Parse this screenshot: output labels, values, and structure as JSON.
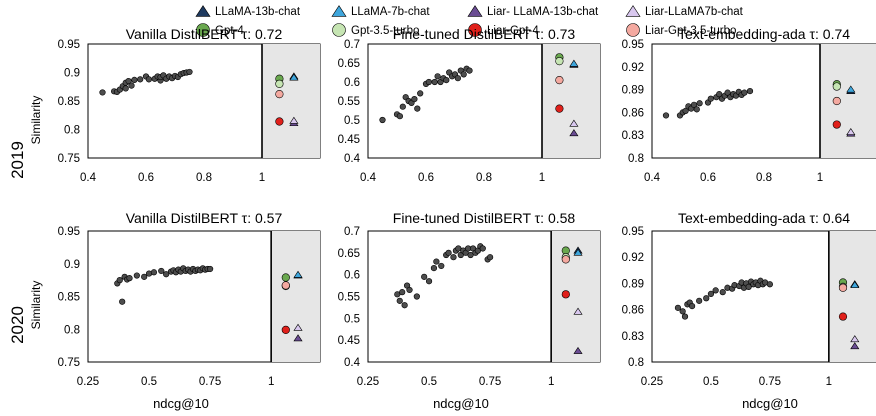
{
  "legend": [
    {
      "label": "LLaMA-13b-chat",
      "marker": "triangle",
      "color": "#1f3a5f"
    },
    {
      "label": "LLaMA-7b-chat",
      "marker": "triangle",
      "color": "#3fa6dc"
    },
    {
      "label": "Liar- LLaMA-13b-chat",
      "marker": "triangle",
      "color": "#6a4c93"
    },
    {
      "label": "Liar-LLaMA7b-chat",
      "marker": "triangle",
      "color": "#d9c8ef"
    },
    {
      "label": "Gpt-4",
      "marker": "circle",
      "color": "#6aa84f"
    },
    {
      "label": "Gpt-3.5-turbo",
      "marker": "circle",
      "color": "#c6e5b3"
    },
    {
      "label": "Liar-Gpt-4",
      "marker": "circle",
      "color": "#e0201b"
    },
    {
      "label": "Liar-Gpt-3.5-turbo",
      "marker": "circle",
      "color": "#f4a9a0"
    }
  ],
  "row_labels": [
    "2019",
    "2020"
  ],
  "ylabel": "Similarity",
  "xlabel": "ndcg@10",
  "colors": {
    "scatter": "#4d4d4d",
    "shade": "#e6e6e6",
    "grey_tick": "#808080"
  },
  "chart_data": [
    {
      "type": "scatter",
      "title": "Vanilla DistilBERT τ: 0.72",
      "xlim": [
        0.4,
        1.2
      ],
      "ylim": [
        0.75,
        0.95
      ],
      "xticks": [
        "0.4",
        "0.6",
        "0.8",
        "1"
      ],
      "xtick_values": [
        0.4,
        0.6,
        0.8,
        1.0
      ],
      "xticks_grey": true,
      "yticks": [
        "0.75",
        "0.8",
        "0.85",
        "0.9",
        "0.95"
      ],
      "ytick_values": [
        0.75,
        0.8,
        0.85,
        0.9,
        0.95
      ],
      "shade_from": 1.0,
      "x": [
        0.45,
        0.49,
        0.5,
        0.51,
        0.52,
        0.53,
        0.53,
        0.54,
        0.55,
        0.56,
        0.58,
        0.6,
        0.61,
        0.63,
        0.64,
        0.65,
        0.65,
        0.66,
        0.67,
        0.68,
        0.69,
        0.7,
        0.71,
        0.72,
        0.73,
        0.74,
        0.75
      ],
      "y": [
        0.865,
        0.867,
        0.866,
        0.87,
        0.876,
        0.882,
        0.872,
        0.885,
        0.877,
        0.887,
        0.888,
        0.893,
        0.888,
        0.889,
        0.893,
        0.886,
        0.892,
        0.895,
        0.889,
        0.893,
        0.89,
        0.894,
        0.892,
        0.897,
        0.899,
        0.9,
        0.901
      ],
      "llm_points": [
        {
          "label": "Gpt-4",
          "x": 1.06,
          "y": 0.889
        },
        {
          "label": "Gpt-3.5-turbo",
          "x": 1.06,
          "y": 0.88
        },
        {
          "label": "Liar-Gpt-3.5-turbo",
          "x": 1.06,
          "y": 0.862
        },
        {
          "label": "Liar-Gpt-4",
          "x": 1.06,
          "y": 0.814
        },
        {
          "label": "LLaMA-13b-chat",
          "x": 1.11,
          "y": 0.893
        },
        {
          "label": "LLaMA-7b-chat",
          "x": 1.11,
          "y": 0.891
        },
        {
          "label": "Liar- LLaMA-13b-chat",
          "x": 1.11,
          "y": 0.811
        },
        {
          "label": "Liar-LLaMA7b-chat",
          "x": 1.11,
          "y": 0.815
        }
      ]
    },
    {
      "type": "scatter",
      "title": "Fine-tuned DistilBERT τ: 0.73",
      "xlim": [
        0.4,
        1.2
      ],
      "ylim": [
        0.4,
        0.7
      ],
      "xticks": [
        "0.4",
        "0.6",
        "0.8",
        "1"
      ],
      "xtick_values": [
        0.4,
        0.6,
        0.8,
        1.0
      ],
      "xticks_grey": false,
      "yticks": [
        "0.4",
        "0.45",
        "0.5",
        "0.55",
        "0.6",
        "0.65",
        "0.7"
      ],
      "ytick_values": [
        0.4,
        0.45,
        0.5,
        0.55,
        0.6,
        0.65,
        0.7
      ],
      "shade_from": 1.0,
      "x": [
        0.45,
        0.5,
        0.51,
        0.52,
        0.53,
        0.54,
        0.55,
        0.56,
        0.57,
        0.58,
        0.6,
        0.61,
        0.63,
        0.64,
        0.65,
        0.66,
        0.67,
        0.68,
        0.69,
        0.7,
        0.71,
        0.72,
        0.73,
        0.74,
        0.75
      ],
      "y": [
        0.5,
        0.515,
        0.51,
        0.535,
        0.56,
        0.55,
        0.545,
        0.555,
        0.53,
        0.57,
        0.595,
        0.6,
        0.6,
        0.615,
        0.6,
        0.61,
        0.605,
        0.625,
        0.615,
        0.62,
        0.61,
        0.63,
        0.62,
        0.635,
        0.63
      ],
      "llm_points": [
        {
          "label": "Gpt-4",
          "x": 1.06,
          "y": 0.665
        },
        {
          "label": "Gpt-3.5-turbo",
          "x": 1.06,
          "y": 0.655
        },
        {
          "label": "Liar-Gpt-3.5-turbo",
          "x": 1.06,
          "y": 0.605
        },
        {
          "label": "Liar-Gpt-4",
          "x": 1.06,
          "y": 0.53
        },
        {
          "label": "LLaMA-13b-chat",
          "x": 1.11,
          "y": 0.645
        },
        {
          "label": "LLaMA-7b-chat",
          "x": 1.11,
          "y": 0.648
        },
        {
          "label": "Liar- LLaMA-13b-chat",
          "x": 1.11,
          "y": 0.465
        },
        {
          "label": "Liar-LLaMA7b-chat",
          "x": 1.11,
          "y": 0.49
        }
      ]
    },
    {
      "type": "scatter",
      "title": "Text-embedding-ada τ: 0.74",
      "xlim": [
        0.4,
        1.2
      ],
      "ylim": [
        0.8,
        0.95
      ],
      "xticks": [
        "0.4",
        "0.6",
        "0.8",
        "1"
      ],
      "xtick_values": [
        0.4,
        0.6,
        0.8,
        1.0
      ],
      "xticks_grey": false,
      "yticks": [
        "0.8",
        "0.83",
        "0.86",
        "0.89",
        "0.92",
        "0.95"
      ],
      "ytick_values": [
        0.8,
        0.83,
        0.86,
        0.89,
        0.92,
        0.95
      ],
      "shade_from": 1.0,
      "x": [
        0.45,
        0.5,
        0.51,
        0.52,
        0.53,
        0.54,
        0.55,
        0.56,
        0.57,
        0.6,
        0.61,
        0.63,
        0.64,
        0.65,
        0.66,
        0.67,
        0.68,
        0.69,
        0.7,
        0.71,
        0.72,
        0.73,
        0.75
      ],
      "y": [
        0.856,
        0.856,
        0.86,
        0.862,
        0.868,
        0.865,
        0.87,
        0.864,
        0.872,
        0.873,
        0.878,
        0.88,
        0.884,
        0.878,
        0.882,
        0.886,
        0.88,
        0.884,
        0.882,
        0.887,
        0.883,
        0.886,
        0.888
      ],
      "llm_points": [
        {
          "label": "Gpt-4",
          "x": 1.06,
          "y": 0.897
        },
        {
          "label": "Gpt-3.5-turbo",
          "x": 1.06,
          "y": 0.894
        },
        {
          "label": "Liar-Gpt-3.5-turbo",
          "x": 1.06,
          "y": 0.875
        },
        {
          "label": "Liar-Gpt-4",
          "x": 1.06,
          "y": 0.844
        },
        {
          "label": "LLaMA-13b-chat",
          "x": 1.11,
          "y": 0.888
        },
        {
          "label": "LLaMA-7b-chat",
          "x": 1.11,
          "y": 0.89
        },
        {
          "label": "Liar- LLaMA-13b-chat",
          "x": 1.11,
          "y": 0.832
        },
        {
          "label": "Liar-LLaMA7b-chat",
          "x": 1.11,
          "y": 0.834
        }
      ]
    },
    {
      "type": "scatter",
      "title": "Vanilla DistilBERT τ: 0.57",
      "xlim": [
        0.25,
        1.2
      ],
      "ylim": [
        0.75,
        0.95
      ],
      "xticks": [
        "0.25",
        "0.5",
        "0.75",
        "1"
      ],
      "xtick_values": [
        0.25,
        0.5,
        0.75,
        1.0
      ],
      "xticks_grey": false,
      "yticks": [
        "0.75",
        "0.8",
        "0.85",
        "0.9",
        "0.95"
      ],
      "ytick_values": [
        0.75,
        0.8,
        0.85,
        0.9,
        0.95
      ],
      "shade_from": 1.0,
      "x": [
        0.37,
        0.38,
        0.39,
        0.4,
        0.41,
        0.42,
        0.45,
        0.48,
        0.5,
        0.52,
        0.55,
        0.57,
        0.59,
        0.6,
        0.61,
        0.62,
        0.63,
        0.64,
        0.65,
        0.66,
        0.67,
        0.68,
        0.69,
        0.7,
        0.71,
        0.72,
        0.73,
        0.74,
        0.75
      ],
      "y": [
        0.87,
        0.875,
        0.842,
        0.88,
        0.876,
        0.878,
        0.882,
        0.88,
        0.885,
        0.887,
        0.889,
        0.884,
        0.888,
        0.89,
        0.887,
        0.891,
        0.888,
        0.893,
        0.889,
        0.891,
        0.888,
        0.892,
        0.889,
        0.891,
        0.89,
        0.893,
        0.891,
        0.892,
        0.892
      ],
      "llm_points": [
        {
          "label": "Gpt-4",
          "x": 1.06,
          "y": 0.879
        },
        {
          "label": "Gpt-3.5-turbo",
          "x": 1.06,
          "y": 0.866
        },
        {
          "label": "Liar-Gpt-3.5-turbo",
          "x": 1.06,
          "y": 0.867
        },
        {
          "label": "Liar-Gpt-4",
          "x": 1.06,
          "y": 0.799
        },
        {
          "label": "LLaMA-13b-chat",
          "x": 1.11,
          "y": 0.882
        },
        {
          "label": "LLaMA-7b-chat",
          "x": 1.11,
          "y": 0.883
        },
        {
          "label": "Liar- LLaMA-13b-chat",
          "x": 1.11,
          "y": 0.786
        },
        {
          "label": "Liar-LLaMA7b-chat",
          "x": 1.11,
          "y": 0.802
        }
      ]
    },
    {
      "type": "scatter",
      "title": "Fine-tuned DistilBERT τ: 0.58",
      "xlim": [
        0.25,
        1.2
      ],
      "ylim": [
        0.4,
        0.7
      ],
      "xticks": [
        "0.25",
        "0.5",
        "0.75",
        "1"
      ],
      "xtick_values": [
        0.25,
        0.5,
        0.75,
        1.0
      ],
      "xticks_grey": false,
      "yticks": [
        "0.4",
        "0.45",
        "0.5",
        "0.55",
        "0.6",
        "0.65",
        "0.7"
      ],
      "ytick_values": [
        0.4,
        0.45,
        0.5,
        0.55,
        0.6,
        0.65,
        0.7
      ],
      "shade_from": 1.0,
      "x": [
        0.37,
        0.38,
        0.39,
        0.4,
        0.41,
        0.42,
        0.45,
        0.48,
        0.5,
        0.52,
        0.53,
        0.55,
        0.57,
        0.58,
        0.6,
        0.61,
        0.62,
        0.63,
        0.64,
        0.65,
        0.66,
        0.67,
        0.68,
        0.69,
        0.7,
        0.71,
        0.72,
        0.74,
        0.75
      ],
      "y": [
        0.555,
        0.54,
        0.56,
        0.53,
        0.575,
        0.565,
        0.55,
        0.595,
        0.585,
        0.615,
        0.63,
        0.62,
        0.645,
        0.65,
        0.64,
        0.655,
        0.66,
        0.645,
        0.655,
        0.65,
        0.66,
        0.645,
        0.66,
        0.65,
        0.655,
        0.665,
        0.66,
        0.635,
        0.64
      ],
      "llm_points": [
        {
          "label": "Gpt-4",
          "x": 1.06,
          "y": 0.655
        },
        {
          "label": "Gpt-3.5-turbo",
          "x": 1.06,
          "y": 0.64
        },
        {
          "label": "Liar-Gpt-3.5-turbo",
          "x": 1.06,
          "y": 0.635
        },
        {
          "label": "Liar-Gpt-4",
          "x": 1.06,
          "y": 0.555
        },
        {
          "label": "LLaMA-13b-chat",
          "x": 1.11,
          "y": 0.655
        },
        {
          "label": "LLaMA-7b-chat",
          "x": 1.11,
          "y": 0.65
        },
        {
          "label": "Liar- LLaMA-13b-chat",
          "x": 1.11,
          "y": 0.425
        },
        {
          "label": "Liar-LLaMA7b-chat",
          "x": 1.11,
          "y": 0.515
        }
      ]
    },
    {
      "type": "scatter",
      "title": "Text-embedding-ada τ: 0.64",
      "xlim": [
        0.25,
        1.2
      ],
      "ylim": [
        0.8,
        0.95
      ],
      "xticks": [
        "0.25",
        "0.5",
        "0.75",
        "1"
      ],
      "xtick_values": [
        0.25,
        0.5,
        0.75,
        1.0
      ],
      "xticks_grey": false,
      "yticks": [
        "0.8",
        "0.83",
        "0.86",
        "0.89",
        "0.92",
        "0.95"
      ],
      "ytick_values": [
        0.8,
        0.83,
        0.86,
        0.89,
        0.92,
        0.95
      ],
      "shade_from": 1.0,
      "x": [
        0.36,
        0.38,
        0.39,
        0.4,
        0.41,
        0.42,
        0.45,
        0.48,
        0.5,
        0.52,
        0.55,
        0.57,
        0.59,
        0.6,
        0.62,
        0.63,
        0.64,
        0.65,
        0.66,
        0.67,
        0.68,
        0.69,
        0.7,
        0.71,
        0.72,
        0.73,
        0.75
      ],
      "y": [
        0.862,
        0.858,
        0.852,
        0.866,
        0.868,
        0.864,
        0.87,
        0.873,
        0.878,
        0.882,
        0.88,
        0.885,
        0.884,
        0.888,
        0.887,
        0.891,
        0.885,
        0.89,
        0.886,
        0.892,
        0.889,
        0.891,
        0.888,
        0.893,
        0.889,
        0.891,
        0.889
      ],
      "llm_points": [
        {
          "label": "Gpt-4",
          "x": 1.06,
          "y": 0.891
        },
        {
          "label": "Gpt-3.5-turbo",
          "x": 1.06,
          "y": 0.886
        },
        {
          "label": "Liar-Gpt-3.5-turbo",
          "x": 1.06,
          "y": 0.885
        },
        {
          "label": "Liar-Gpt-4",
          "x": 1.06,
          "y": 0.852
        },
        {
          "label": "LLaMA-13b-chat",
          "x": 1.11,
          "y": 0.889
        },
        {
          "label": "LLaMA-7b-chat",
          "x": 1.11,
          "y": 0.888
        },
        {
          "label": "Liar- LLaMA-13b-chat",
          "x": 1.11,
          "y": 0.818
        },
        {
          "label": "Liar-LLaMA7b-chat",
          "x": 1.11,
          "y": 0.826
        }
      ]
    }
  ]
}
